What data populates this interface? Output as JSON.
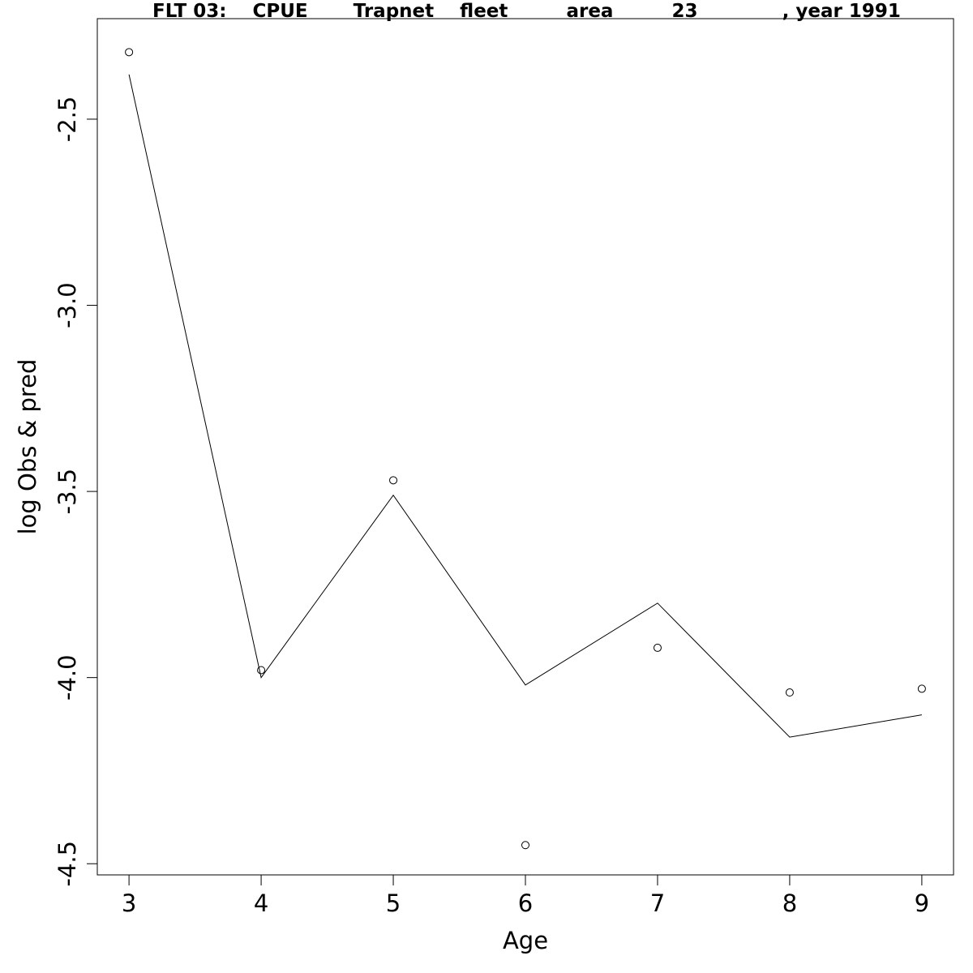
{
  "chart_data": {
    "type": "line",
    "title": "FLT 03:    CPUE       Trapnet    fleet         area         23             , year 1991",
    "xlabel": "Age",
    "ylabel": "log Obs & pred",
    "xlim": [
      2.76,
      9.24
    ],
    "ylim": [
      -4.53,
      -2.23
    ],
    "x_ticks": [
      3,
      4,
      5,
      6,
      7,
      8,
      9
    ],
    "y_ticks": [
      -2.5,
      -3.0,
      -3.5,
      -4.0,
      -4.5
    ],
    "x_tick_labels": [
      "3",
      "4",
      "5",
      "6",
      "7",
      "8",
      "9"
    ],
    "y_tick_labels": [
      "-2.5",
      "-3.0",
      "-3.5",
      "-4.0",
      "-4.5"
    ],
    "grid": false,
    "series": [
      {
        "style": "points",
        "x": [
          3,
          4,
          5,
          6,
          7,
          8,
          9
        ],
        "y": [
          -2.32,
          -3.98,
          -3.47,
          -4.45,
          -3.92,
          -4.04,
          -4.03
        ]
      },
      {
        "style": "line",
        "x": [
          3,
          4,
          5,
          6,
          7,
          8,
          9
        ],
        "y": [
          -2.38,
          -4.0,
          -3.51,
          -4.02,
          -3.8,
          -4.16,
          -4.1
        ]
      }
    ]
  }
}
